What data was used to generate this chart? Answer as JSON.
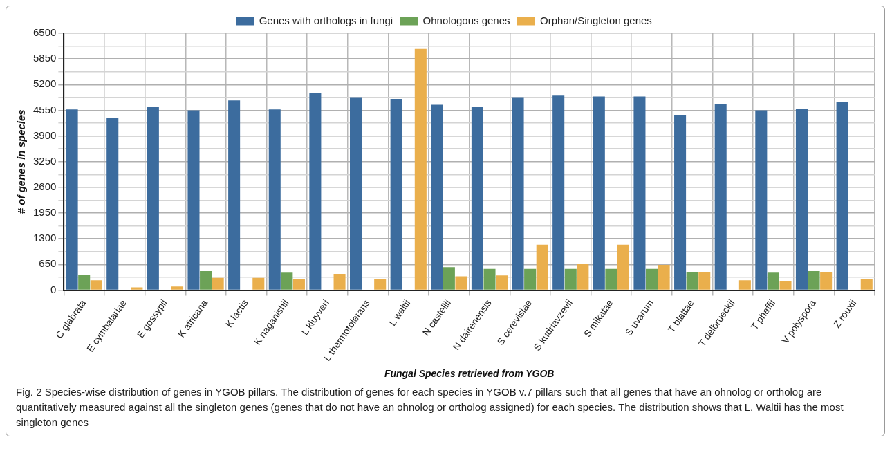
{
  "chart_data": {
    "type": "bar",
    "xlabel": "Fungal Species retrieved from YGOB",
    "ylabel": "# of genes in species",
    "categories": [
      "C glabrata",
      "E cymbalariae",
      "E gossypii",
      "K africana",
      "K lactis",
      "K naganishii",
      "L kluyveri",
      "L thermotolerans",
      "L waltii",
      "N castellii",
      "N dairenensis",
      "S cerevisiae",
      "S kudriavzevii",
      "S mikatae",
      "S uvarum",
      "T blattae",
      "T delbrueckii",
      "T phaffii",
      "V polyspora",
      "Z rouxii"
    ],
    "series": [
      {
        "name": "Genes with orthologs in fungi",
        "color": "#3c6c9e",
        "values": [
          4570,
          4350,
          4630,
          4550,
          4800,
          4570,
          4980,
          4880,
          4840,
          4690,
          4630,
          4880,
          4920,
          4900,
          4900,
          4430,
          4710,
          4550,
          4590,
          4750
        ]
      },
      {
        "name": "Ohnologous genes",
        "color": "#6ca257",
        "values": [
          390,
          0,
          0,
          480,
          0,
          440,
          0,
          0,
          0,
          580,
          540,
          540,
          540,
          540,
          540,
          460,
          0,
          440,
          480,
          0
        ]
      },
      {
        "name": "Orphan/Singleton genes",
        "color": "#eaaf4c",
        "values": [
          250,
          70,
          90,
          310,
          310,
          290,
          410,
          270,
          6100,
          350,
          370,
          1150,
          660,
          1150,
          640,
          460,
          250,
          230,
          460,
          290
        ]
      }
    ],
    "ylim": [
      0,
      6500
    ],
    "yticks": [
      0,
      {
        "value": 325,
        "label": null
      },
      650,
      {
        "value": 975,
        "label": null
      },
      1300,
      {
        "value": 1625,
        "label": null
      },
      1950,
      {
        "value": 2275,
        "label": null
      },
      2600,
      {
        "value": 2925,
        "label": null
      },
      3250,
      {
        "value": 3575,
        "label": null
      },
      3900,
      {
        "value": 4225,
        "label": null
      },
      4550,
      {
        "value": 4875,
        "label": null
      },
      5200,
      {
        "value": 5525,
        "label": null
      },
      5850,
      {
        "value": 6175,
        "label": null
      },
      6500
    ],
    "grid": true,
    "legend": "top",
    "annotations": [
      "Fig. 2 Species-wise distribution of genes in YGOB pillars. The distribution of genes for each species in YGOB v.7 pillars such that all genes that have an ohnolog or ortholog are quantitatively measured against all the singleton genes (genes that do not have an ohnolog or ortholog assigned) for each species. The distribution shows that L. Waltii has the most singleton genes"
    ]
  }
}
